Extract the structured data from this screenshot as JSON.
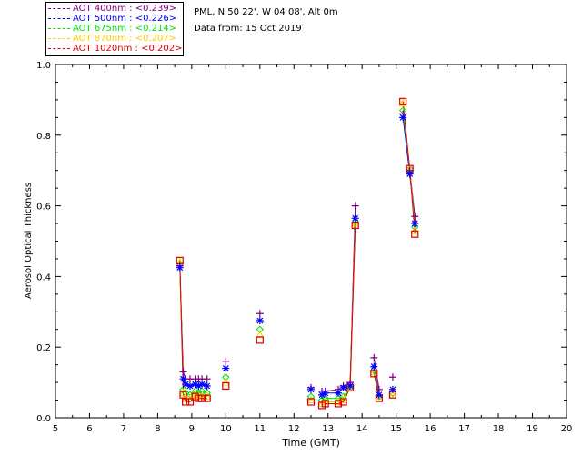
{
  "info": {
    "site": "PML, N 50 22', W 04 08', Alt 0m",
    "date": "Data from: 15 Oct 2019"
  },
  "legend": [
    {
      "label": "AOT  400nm : <0.239>",
      "color": "#800080"
    },
    {
      "label": "AOT  500nm : <0.226>",
      "color": "#0000ff"
    },
    {
      "label": "AOT  675nm : <0.214>",
      "color": "#00e000"
    },
    {
      "label": "AOT  870nm : <0.207>",
      "color": "#ffcc00"
    },
    {
      "label": "AOT 1020nm : <0.202>",
      "color": "#e00000"
    }
  ],
  "chart_data": {
    "type": "scatter",
    "xlabel": "Time (GMT)",
    "ylabel": "Aerosol Optical Thickness",
    "xlim": [
      5,
      20
    ],
    "ylim": [
      0.0,
      1.0
    ],
    "x_ticks": [
      5,
      6,
      7,
      8,
      9,
      10,
      11,
      12,
      13,
      14,
      15,
      16,
      17,
      18,
      19,
      20
    ],
    "y_ticks": [
      "0.0",
      "0.2",
      "0.4",
      "0.6",
      "0.8",
      "1.0"
    ],
    "series": [
      {
        "name": "AOT  400nm",
        "color": "#800080",
        "marker": "plus",
        "x": [
          8.65,
          8.75,
          8.82,
          8.95,
          9.1,
          9.2,
          9.3,
          9.45,
          10.0,
          11.0,
          12.5,
          12.82,
          12.92,
          13.3,
          13.45,
          13.65,
          13.8,
          14.35,
          14.5,
          14.9,
          15.2,
          15.4,
          15.55
        ],
        "y": [
          0.43,
          0.13,
          0.11,
          0.11,
          0.11,
          0.11,
          0.11,
          0.11,
          0.16,
          0.295,
          0.085,
          0.075,
          0.075,
          0.08,
          0.09,
          0.1,
          0.6,
          0.17,
          0.08,
          0.115,
          0.86,
          0.7,
          0.57
        ]
      },
      {
        "name": "AOT  500nm",
        "color": "#0000ff",
        "marker": "asterisk",
        "x": [
          8.65,
          8.75,
          8.82,
          8.95,
          9.1,
          9.2,
          9.3,
          9.45,
          10.0,
          11.0,
          12.5,
          12.82,
          12.92,
          13.3,
          13.45,
          13.65,
          13.8,
          14.35,
          14.5,
          14.9,
          15.2,
          15.4,
          15.55
        ],
        "y": [
          0.425,
          0.11,
          0.095,
          0.09,
          0.095,
          0.09,
          0.095,
          0.09,
          0.14,
          0.275,
          0.08,
          0.065,
          0.07,
          0.07,
          0.085,
          0.09,
          0.565,
          0.145,
          0.065,
          0.08,
          0.85,
          0.69,
          0.55
        ]
      },
      {
        "name": "AOT  675nm",
        "color": "#00e000",
        "marker": "diamond",
        "x": [
          8.65,
          8.75,
          8.82,
          8.95,
          9.1,
          9.2,
          9.3,
          9.45,
          10.0,
          11.0,
          12.5,
          12.82,
          12.92,
          13.3,
          13.45,
          13.65,
          13.8,
          14.35,
          14.5,
          14.9,
          15.2,
          15.4,
          15.55
        ],
        "y": [
          0.435,
          0.08,
          0.07,
          0.065,
          0.075,
          0.07,
          0.075,
          0.07,
          0.115,
          0.25,
          0.06,
          0.05,
          0.055,
          0.055,
          0.06,
          0.085,
          0.555,
          0.135,
          0.06,
          0.07,
          0.87,
          0.705,
          0.54
        ]
      },
      {
        "name": "AOT  870nm",
        "color": "#ffcc00",
        "marker": "triangle",
        "x": [
          8.65,
          8.75,
          8.82,
          8.95,
          9.1,
          9.2,
          9.3,
          9.45,
          10.0,
          11.0,
          12.5,
          12.82,
          12.92,
          13.3,
          13.45,
          13.65,
          13.8,
          14.35,
          14.5,
          14.9,
          15.2,
          15.4,
          15.55
        ],
        "y": [
          0.44,
          0.07,
          0.055,
          0.055,
          0.065,
          0.06,
          0.06,
          0.06,
          0.1,
          0.235,
          0.05,
          0.04,
          0.045,
          0.045,
          0.05,
          0.085,
          0.55,
          0.13,
          0.055,
          0.065,
          0.89,
          0.705,
          0.53
        ]
      },
      {
        "name": "AOT 1020nm",
        "color": "#e00000",
        "marker": "square",
        "x": [
          8.65,
          8.75,
          8.82,
          8.95,
          9.1,
          9.2,
          9.3,
          9.45,
          10.0,
          11.0,
          12.5,
          12.82,
          12.92,
          13.3,
          13.45,
          13.65,
          13.8,
          14.35,
          14.5,
          14.9,
          15.2,
          15.4,
          15.55
        ],
        "y": [
          0.445,
          0.065,
          0.045,
          0.045,
          0.06,
          0.055,
          0.055,
          0.055,
          0.09,
          0.22,
          0.045,
          0.035,
          0.04,
          0.04,
          0.045,
          0.085,
          0.545,
          0.125,
          0.055,
          0.065,
          0.895,
          0.705,
          0.52
        ]
      }
    ],
    "connected_segments": [
      [
        0,
        7
      ],
      [
        11,
        16
      ],
      [
        17,
        18
      ],
      [
        20,
        22
      ]
    ]
  }
}
